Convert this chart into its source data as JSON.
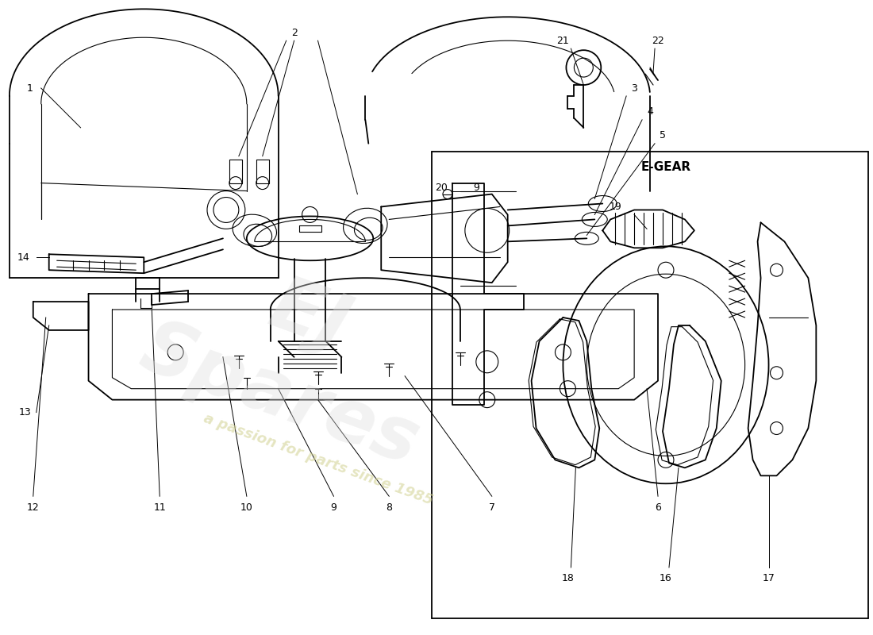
{
  "background_color": "#ffffff",
  "line_color": "#000000",
  "fig_width": 11.0,
  "fig_height": 8.0,
  "dpi": 100,
  "lw_main": 1.3,
  "lw_thin": 0.8,
  "lw_leader": 0.7,
  "label_fontsize": 9.0,
  "egear_label": "E-GEAR",
  "watermark1": "a passion for parts since 1985",
  "watermark2": "EJ\nSpares"
}
